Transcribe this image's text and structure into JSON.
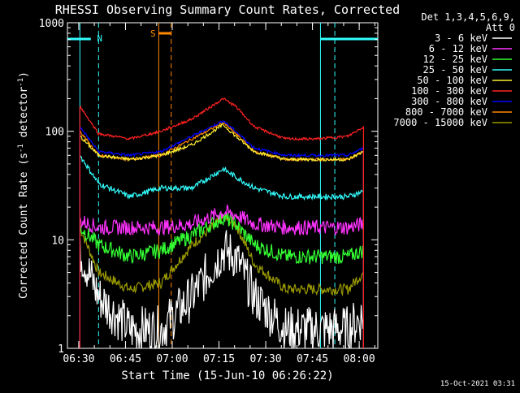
{
  "title": "RHESSI Observing Summary Count Rates, Corrected",
  "timestamp": "15-Oct-2021 03:31",
  "chart_data": {
    "type": "line",
    "title": "RHESSI Observing Summary Count Rates, Corrected",
    "xlabel": "Start Time (15-Jun-10 06:26:22)",
    "ylabel": "Corrected Count Rate (s⁻¹ detector⁻¹)",
    "ylabel_main": "Corrected Count Rate (s",
    "ylabel_sup1": "-1",
    "ylabel_mid": " detector",
    "ylabel_sup2": "-1",
    "ylabel_end": ")",
    "yscale": "log",
    "ylim": [
      1,
      1000
    ],
    "xlim": [
      "06:26:22",
      "08:06:00"
    ],
    "xticks": [
      "06:30",
      "06:45",
      "07:00",
      "07:15",
      "07:30",
      "07:45",
      "08:00"
    ],
    "yticks": [
      "1",
      "10",
      "100",
      "1000"
    ],
    "x_minutes": [
      4,
      10,
      20,
      30,
      40,
      50,
      54,
      60,
      70,
      80,
      90,
      95
    ],
    "series": [
      {
        "name": "3 - 6 keV",
        "color": "#ffffff",
        "values": [
          8,
          3,
          1.5,
          1.5,
          3,
          8,
          7,
          3,
          1.5,
          1.5,
          1.5,
          2
        ]
      },
      {
        "name": "6 - 12 keV",
        "color": "#ff33ff",
        "values": [
          15,
          13,
          13,
          13,
          14,
          18,
          17,
          14,
          13,
          13,
          13,
          14
        ]
      },
      {
        "name": "12 - 25 keV",
        "color": "#33ff33",
        "values": [
          13,
          9,
          7,
          8,
          11,
          16,
          14,
          9,
          7,
          7,
          7,
          8
        ]
      },
      {
        "name": "25 - 50 keV",
        "color": "#33ffff",
        "values": [
          60,
          33,
          25,
          30,
          30,
          45,
          38,
          30,
          25,
          25,
          25,
          28
        ]
      },
      {
        "name": "50 - 100 keV",
        "color": "#ffee33",
        "values": [
          90,
          60,
          55,
          60,
          75,
          115,
          90,
          65,
          55,
          55,
          55,
          65
        ]
      },
      {
        "name": "100 - 300 keV",
        "color": "#ff2222",
        "values": [
          170,
          95,
          85,
          100,
          130,
          200,
          170,
          110,
          85,
          85,
          90,
          110
        ]
      },
      {
        "name": "300 - 800 keV",
        "color": "#0000ff",
        "values": [
          110,
          65,
          60,
          65,
          90,
          125,
          100,
          70,
          60,
          60,
          60,
          70
        ]
      },
      {
        "name": "800 - 7000 keV",
        "color": "#ff8800",
        "values": [
          100,
          60,
          55,
          60,
          85,
          120,
          95,
          65,
          55,
          55,
          55,
          65
        ]
      },
      {
        "name": "7000 - 15000 keV",
        "color": "#999900",
        "values": [
          13,
          5,
          3.5,
          4,
          9,
          16,
          14,
          6,
          3.5,
          3.5,
          3.5,
          5
        ]
      }
    ],
    "legend": {
      "header_line1": "Det 1,3,4,5,6,9,",
      "header_line2": "Att 0",
      "placement": "top-right outside"
    },
    "markers": [
      {
        "label": "N",
        "color": "#33ffff"
      },
      {
        "label": "S",
        "color": "#ff8800"
      }
    ]
  }
}
